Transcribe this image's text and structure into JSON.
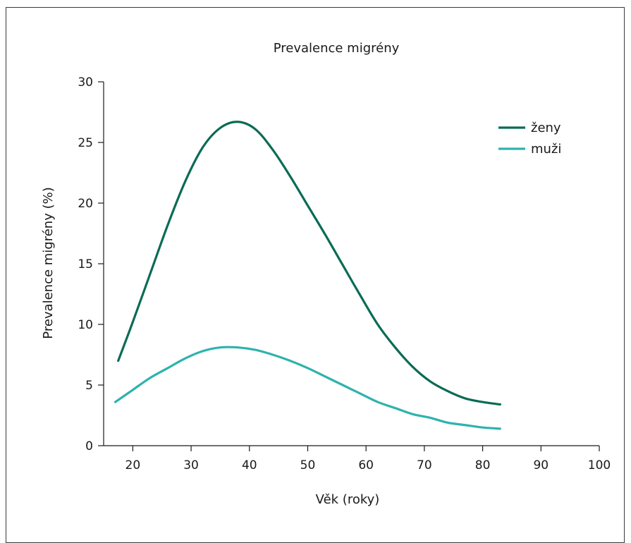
{
  "chart_data": {
    "type": "line",
    "title": "Prevalence migrény",
    "xlabel": "Věk (roky)",
    "ylabel": "Prevalence migrény (%)",
    "xlim": [
      15,
      100
    ],
    "ylim": [
      0,
      30
    ],
    "xticks": [
      20,
      30,
      40,
      50,
      60,
      70,
      80,
      90,
      100
    ],
    "yticks": [
      0,
      5,
      10,
      15,
      20,
      25,
      30
    ],
    "grid": false,
    "legend_position": "top-right",
    "series": [
      {
        "name": "ženy",
        "color": "#0a6b55",
        "x": [
          17.5,
          20,
          23,
          26,
          29,
          32,
          35,
          38,
          41,
          44,
          47,
          50,
          53,
          56,
          59,
          62,
          65,
          68,
          71,
          74,
          77,
          80,
          83
        ],
        "y": [
          7.0,
          10.2,
          14.2,
          18.2,
          21.8,
          24.6,
          26.2,
          26.7,
          26.1,
          24.4,
          22.2,
          19.8,
          17.4,
          14.9,
          12.4,
          10.0,
          8.1,
          6.5,
          5.3,
          4.5,
          3.9,
          3.6,
          3.4
        ]
      },
      {
        "name": "muži",
        "color": "#2db3ad",
        "x": [
          17,
          20,
          23,
          26,
          29,
          32,
          35,
          38,
          41,
          44,
          47,
          50,
          53,
          56,
          59,
          62,
          65,
          68,
          71,
          74,
          77,
          80,
          83
        ],
        "y": [
          3.6,
          4.6,
          5.6,
          6.4,
          7.2,
          7.8,
          8.1,
          8.1,
          7.9,
          7.5,
          7.0,
          6.4,
          5.7,
          5.0,
          4.3,
          3.6,
          3.1,
          2.6,
          2.3,
          1.9,
          1.7,
          1.5,
          1.4
        ]
      }
    ]
  }
}
